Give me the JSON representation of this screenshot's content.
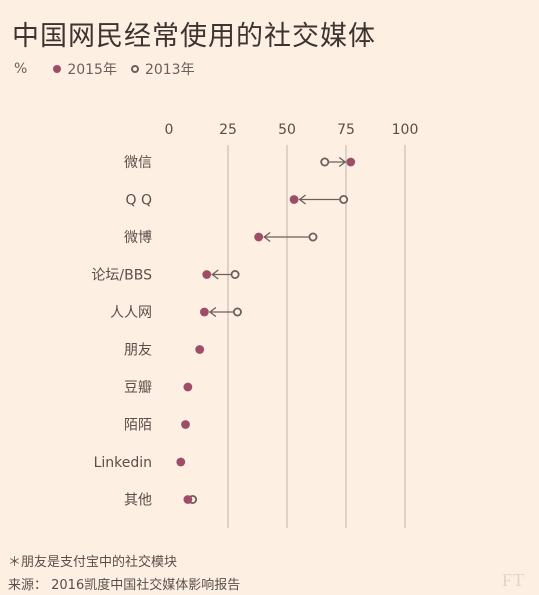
{
  "title": "中国网民经常使用的社交媒体",
  "legend": {
    "unit": "%",
    "series_2015": "2015年",
    "series_2013": "2013年"
  },
  "footnote": "＊朋友是支付宝中的社交模块",
  "source": "来源：  2016凯度中国社交媒体影响报告",
  "logo": "FT",
  "colors": {
    "series_2015": "#9e4d68",
    "series_2013": "#6b605a",
    "gridline": "#c9bdb3",
    "background": "#fdf0e3"
  },
  "chart_data": {
    "type": "dot-arrow",
    "x_ticks": [
      0,
      25,
      50,
      75,
      100
    ],
    "xlim": [
      0,
      100
    ],
    "grid": true,
    "categories": [
      "微信",
      "Q Q",
      "微博",
      "论坛/BBS",
      "人人网",
      "朋友",
      "豆瓣",
      "陌陌",
      "Linkedin",
      "其他"
    ],
    "series": [
      {
        "name": "2015年",
        "marker": "filled",
        "values": [
          77,
          53,
          38,
          16,
          15,
          13,
          8,
          7,
          5,
          8
        ]
      },
      {
        "name": "2013年",
        "marker": "hollow",
        "values": [
          66,
          74,
          61,
          28,
          29,
          null,
          null,
          null,
          null,
          10
        ]
      }
    ]
  }
}
